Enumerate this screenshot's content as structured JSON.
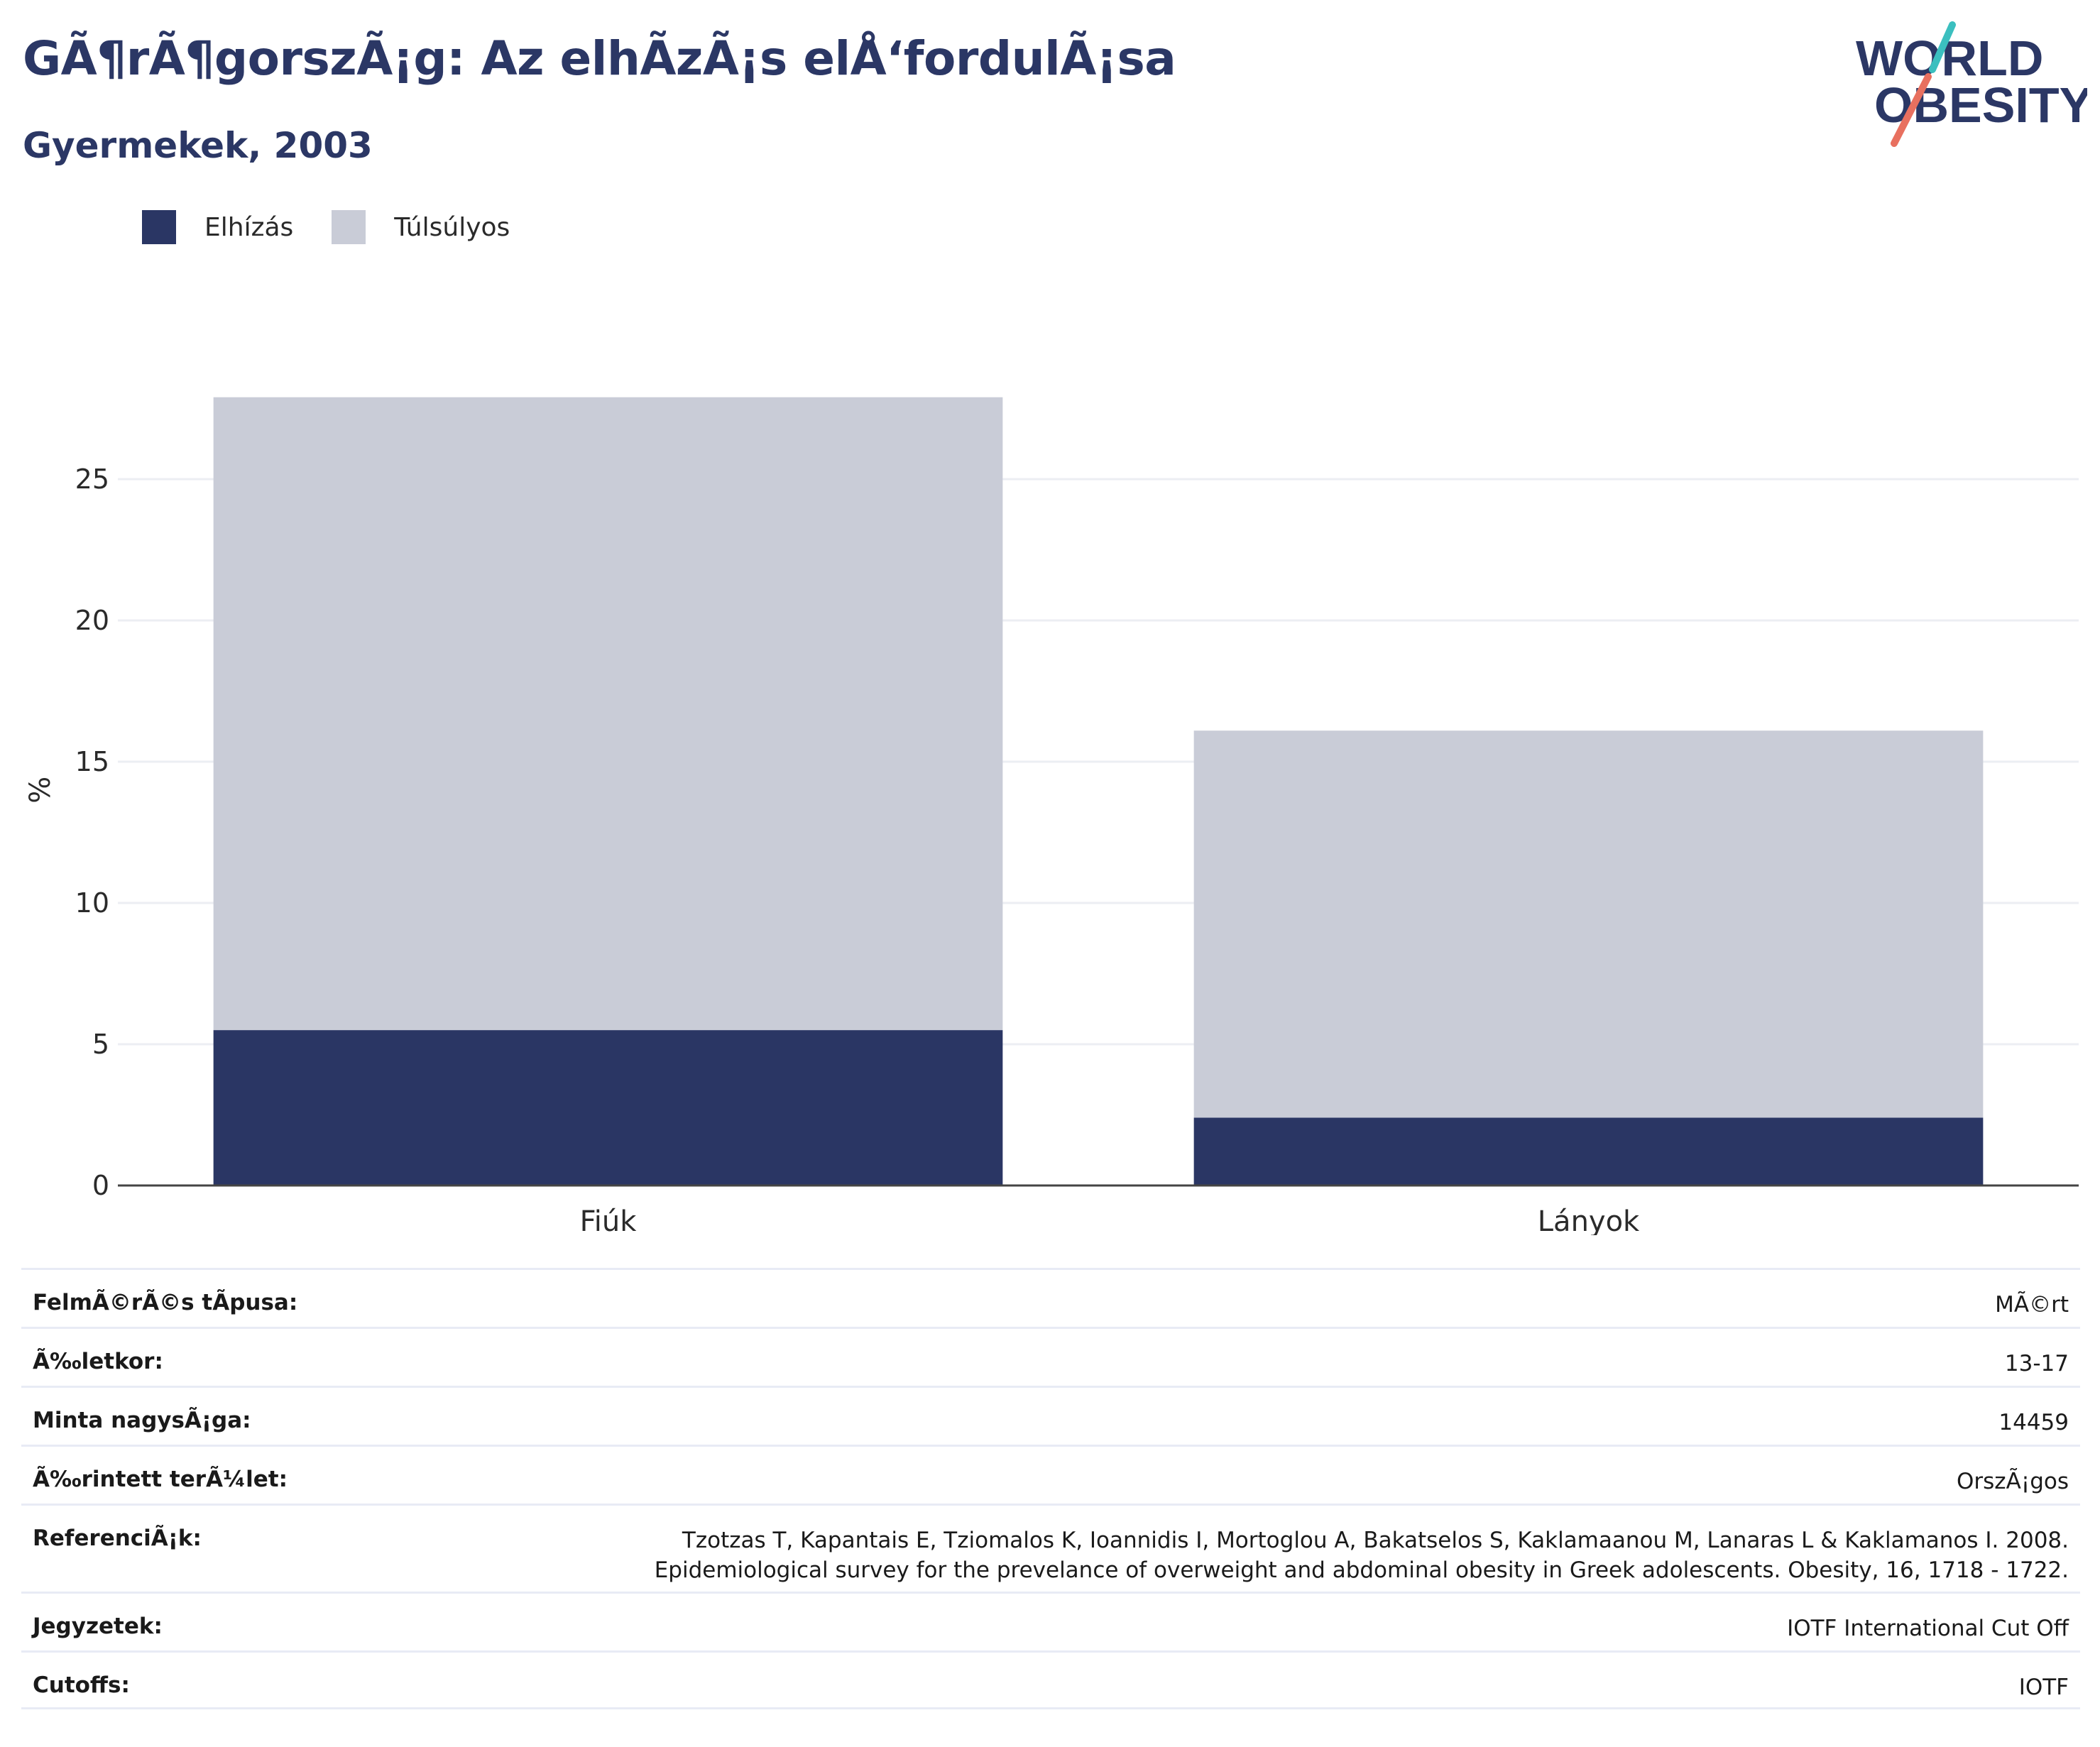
{
  "header": {
    "title": "GÃ¶rÃ¶gorszÃ¡g: Az elhÃ­zÃ¡s elÅ‘fordulÃ¡sa",
    "subtitle": "Gyermekek, 2003"
  },
  "logo": {
    "line1": "WORLD",
    "line2": "OBESITY",
    "slash_colors": [
      "#3bbfbf",
      "#e8705f"
    ],
    "text_color": "#2b3765"
  },
  "legend": [
    {
      "label": "Elhízás",
      "color": "#2a3664"
    },
    {
      "label": "Túlsúlyos",
      "color": "#c9ccd7"
    }
  ],
  "chart_data": {
    "type": "bar",
    "stacked": true,
    "categories": [
      "Fiúk",
      "Lányok"
    ],
    "series": [
      {
        "name": "Elhízás",
        "values": [
          5.5,
          2.4
        ],
        "color": "#2a3664"
      },
      {
        "name": "Túlsúlyos",
        "values": [
          22.4,
          13.7
        ],
        "color": "#c9ccd7"
      }
    ],
    "ylabel": "%",
    "ylim": [
      0,
      28
    ],
    "yticks": [
      0,
      5,
      10,
      15,
      20,
      25
    ],
    "grid": true,
    "legend_position": "top-left"
  },
  "info_table": [
    {
      "key": "FelmÃ©rÃ©s tÃpusa:",
      "value": [
        "MÃ©rt"
      ]
    },
    {
      "key": "Ã‰letkor:",
      "value": [
        "13-17"
      ]
    },
    {
      "key": "Minta nagysÃ¡ga:",
      "value": [
        "14459"
      ]
    },
    {
      "key": "Ã‰rintett terÃ¼let:",
      "value": [
        "OrszÃ¡gos"
      ]
    },
    {
      "key": "ReferenciÃ¡k:",
      "value": [
        "Tzotzas T, Kapantais E, Tziomalos K, Ioannidis I, Mortoglou A, Bakatselos S, Kaklamaanou M, Lanaras L & Kaklamanos I. 2008.",
        "Epidemiological survey for the prevelance of overweight and abdominal obesity in Greek adolescents. Obesity, 16, 1718 - 1722."
      ]
    },
    {
      "key": "Jegyzetek:",
      "value": [
        "IOTF International Cut Off"
      ]
    },
    {
      "key": "Cutoffs:",
      "value": [
        "IOTF"
      ]
    }
  ]
}
